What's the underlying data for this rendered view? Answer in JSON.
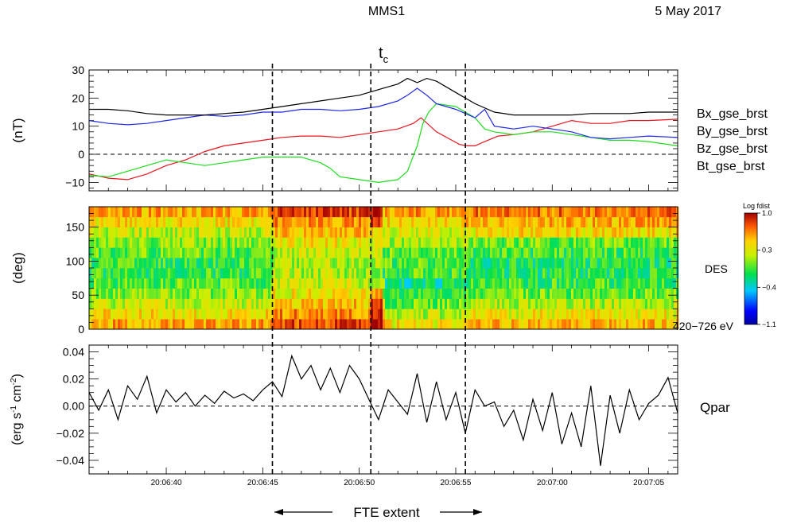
{
  "header": {
    "spacecraft": "MMS1",
    "date": "5 May 2017",
    "tc_main": "t",
    "tc_sub": "c"
  },
  "footer": {
    "fte_label": "FTE extent"
  },
  "colors": {
    "bx": "#e8141e",
    "by": "#1edc1e",
    "bz": "#1e28e6",
    "bt": "#000000"
  },
  "chart_data": [
    {
      "type": "line",
      "panel": "magnetic-field",
      "ylabel": "(nT)",
      "ylim": [
        -13,
        30
      ],
      "yticks": [
        -10,
        0,
        10,
        20,
        30
      ],
      "ytick_labels": [
        "−10",
        "0",
        "10",
        "20",
        "30"
      ],
      "x_units": "seconds after 20:06:30 UT",
      "xlim": [
        6.0,
        36.5
      ],
      "zero_line": true,
      "series": [
        {
          "name": "Bx_gse_brst",
          "color": "#e8141e",
          "x": [
            6.0,
            7.0,
            8.0,
            9.0,
            10.0,
            11.0,
            12.0,
            13.0,
            14.0,
            15.0,
            16.0,
            17.0,
            18.0,
            19.0,
            20.0,
            21.0,
            22.0,
            22.8,
            23.2,
            24.0,
            24.8,
            25.2,
            25.6,
            26.0,
            26.5,
            27.2,
            28.0,
            29.0,
            30.0,
            31.0,
            32.0,
            33.0,
            34.0,
            35.0,
            36.5
          ],
          "y": [
            -7,
            -8.5,
            -9,
            -7,
            -4,
            -2,
            1,
            3,
            4,
            5,
            6,
            6.5,
            6.5,
            6,
            7,
            8,
            9,
            11,
            13,
            8,
            5,
            3.5,
            3,
            3,
            4.5,
            6.5,
            7,
            8,
            10,
            12,
            11,
            11,
            12,
            12,
            12.5
          ]
        },
        {
          "name": "By_gse_brst",
          "color": "#1edc1e",
          "x": [
            6.0,
            7.0,
            8.0,
            9.0,
            10.0,
            11.0,
            12.0,
            13.0,
            14.0,
            15.0,
            16.0,
            17.0,
            18.0,
            18.5,
            19.0,
            20.0,
            21.0,
            22.0,
            22.5,
            23.0,
            23.3,
            23.6,
            24.0,
            25.0,
            26.0,
            26.5,
            27.0,
            28.0,
            29.0,
            30.0,
            31.0,
            32.0,
            33.0,
            34.0,
            35.0,
            36.5
          ],
          "y": [
            -7.5,
            -8,
            -6,
            -4,
            -2,
            -3,
            -4,
            -3,
            -2,
            -1,
            -1,
            -1,
            -3,
            -5,
            -8,
            -9,
            -10,
            -9,
            -6,
            3,
            11,
            15,
            18,
            17,
            13,
            9,
            8,
            7,
            8,
            8,
            7,
            6,
            5,
            5,
            4.5,
            3
          ]
        },
        {
          "name": "Bz_gse_brst",
          "color": "#1e28e6",
          "x": [
            6.0,
            7.0,
            8.0,
            9.0,
            10.0,
            11.0,
            12.0,
            13.0,
            14.0,
            15.0,
            16.0,
            17.0,
            18.0,
            19.0,
            20.0,
            21.0,
            22.0,
            22.5,
            23.0,
            23.5,
            24.0,
            25.0,
            26.0,
            26.5,
            27.0,
            28.0,
            29.0,
            30.0,
            31.0,
            32.0,
            33.0,
            34.0,
            35.0,
            36.5
          ],
          "y": [
            12,
            11,
            10.5,
            11,
            12,
            13,
            14,
            13.5,
            14,
            15,
            15,
            16,
            16,
            15.5,
            16,
            17,
            19,
            21,
            23.5,
            21,
            18,
            16,
            13,
            16,
            10,
            9,
            10,
            9,
            8,
            6,
            5.5,
            6,
            6.5,
            6
          ]
        },
        {
          "name": "Bt_gse_brst",
          "color": "#000000",
          "x": [
            6.0,
            7.0,
            8.0,
            9.0,
            10.0,
            11.0,
            12.0,
            13.0,
            14.0,
            15.0,
            16.0,
            17.0,
            18.0,
            19.0,
            20.0,
            21.0,
            22.0,
            22.5,
            23.0,
            23.5,
            24.0,
            25.0,
            26.0,
            27.0,
            28.0,
            29.0,
            30.0,
            31.0,
            32.0,
            33.0,
            34.0,
            35.0,
            36.5
          ],
          "y": [
            16,
            16,
            15.5,
            14.5,
            14,
            14,
            14,
            14.5,
            15,
            16,
            17,
            18,
            19,
            20,
            21,
            23,
            25,
            27,
            25.5,
            27,
            26,
            22,
            18,
            15,
            14,
            14,
            14,
            14,
            14.5,
            14.5,
            14.5,
            15,
            15
          ]
        }
      ]
    },
    {
      "type": "heatmap",
      "panel": "pitch-angle",
      "ylabel": "(deg)",
      "ylim": [
        0,
        180
      ],
      "yticks": [
        0,
        50,
        100,
        150
      ],
      "ytick_labels": [
        "0",
        "50",
        "100",
        "150"
      ],
      "xlim": [
        6.0,
        36.5
      ],
      "side_label": "DES",
      "energy_label": "420−726 eV",
      "colorbar": {
        "title": "Log fdist",
        "range": [
          -1.1,
          1.0
        ],
        "ticks": [
          1.0,
          0.3,
          -0.4,
          -1.1
        ],
        "tick_labels": [
          "1.0",
          "0.3",
          "−0.4",
          "−1.1"
        ]
      }
    },
    {
      "type": "line",
      "panel": "heat-flux",
      "ylabel_main": "(erg s",
      "ylabel_sup1": "-1",
      "ylabel_mid": " cm",
      "ylabel_sup2": "-2",
      "ylabel_end": ")",
      "ylim": [
        -0.05,
        0.045
      ],
      "yticks": [
        -0.04,
        -0.02,
        0.0,
        0.02,
        0.04
      ],
      "ytick_labels": [
        "−0.04",
        "−0.02",
        "0.00",
        "0.02",
        "0.04"
      ],
      "xlim": [
        6.0,
        36.5
      ],
      "xticks": [
        10,
        15,
        20,
        25,
        30,
        35
      ],
      "xtick_labels": [
        "20:06:40",
        "20:06:45",
        "20:06:50",
        "20:06:55",
        "20:07:00",
        "20:07:05"
      ],
      "zero_line": true,
      "series": [
        {
          "name": "Qpar",
          "color": "#000000",
          "x": [
            6.0,
            6.5,
            7.0,
            7.5,
            8.0,
            8.5,
            9.0,
            9.5,
            10.0,
            10.5,
            11.0,
            11.5,
            12.0,
            12.5,
            13.0,
            13.5,
            14.0,
            14.5,
            15.0,
            15.5,
            16.0,
            16.5,
            17.0,
            17.5,
            18.0,
            18.5,
            19.0,
            19.5,
            20.0,
            20.5,
            21.0,
            21.5,
            22.0,
            22.5,
            23.0,
            23.5,
            24.0,
            24.5,
            25.0,
            25.5,
            26.0,
            26.5,
            27.0,
            27.5,
            28.0,
            28.5,
            29.0,
            29.5,
            30.0,
            30.5,
            31.0,
            31.5,
            32.0,
            32.5,
            33.0,
            33.5,
            34.0,
            34.5,
            35.0,
            35.5,
            36.0,
            36.5
          ],
          "y": [
            0.01,
            -0.003,
            0.012,
            -0.01,
            0.015,
            0.005,
            0.022,
            -0.005,
            0.012,
            0.003,
            0.01,
            0.0,
            0.008,
            0.002,
            0.011,
            0.006,
            0.009,
            0.004,
            0.012,
            0.018,
            0.007,
            0.037,
            0.02,
            0.03,
            0.012,
            0.028,
            0.01,
            0.03,
            0.02,
            0.005,
            -0.01,
            0.012,
            0.003,
            -0.006,
            0.024,
            -0.012,
            0.018,
            -0.01,
            0.01,
            -0.02,
            0.012,
            0.0,
            0.003,
            -0.015,
            -0.003,
            -0.025,
            0.005,
            -0.018,
            0.01,
            -0.028,
            -0.005,
            -0.03,
            0.015,
            -0.044,
            0.008,
            -0.02,
            0.012,
            -0.01,
            0.002,
            0.008,
            0.021,
            -0.005
          ]
        }
      ]
    }
  ],
  "markers": {
    "lines_x": [
      15.5,
      20.6,
      25.5
    ],
    "tc_x": 20.6
  }
}
